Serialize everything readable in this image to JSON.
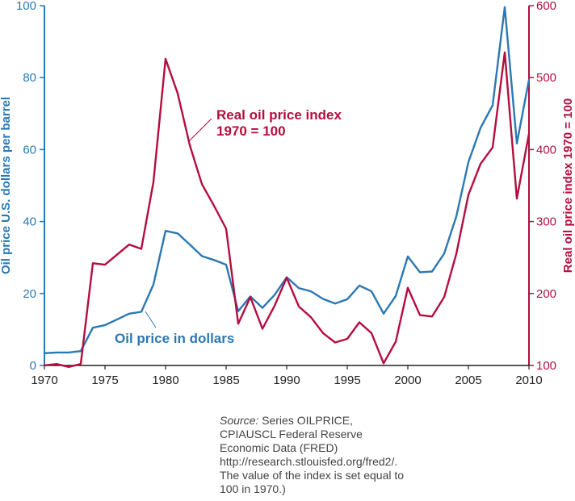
{
  "chart_data": {
    "type": "line",
    "x": [
      1970,
      1971,
      1972,
      1973,
      1974,
      1975,
      1976,
      1977,
      1978,
      1979,
      1980,
      1981,
      1982,
      1983,
      1984,
      1985,
      1986,
      1987,
      1988,
      1989,
      1990,
      1991,
      1992,
      1993,
      1994,
      1995,
      1996,
      1997,
      1998,
      1999,
      2000,
      2001,
      2002,
      2003,
      2004,
      2005,
      2006,
      2007,
      2008,
      2009,
      2010
    ],
    "series": [
      {
        "name": "Oil price in dollars",
        "axis": "left",
        "color": "#2b78b4",
        "values": [
          3.4,
          3.6,
          3.6,
          4.0,
          10.5,
          11.2,
          12.8,
          14.4,
          14.9,
          22.5,
          37.4,
          36.7,
          33.6,
          30.4,
          29.3,
          28.0,
          15.1,
          19.2,
          16.0,
          19.6,
          24.5,
          21.5,
          20.6,
          18.5,
          17.2,
          18.4,
          22.2,
          20.6,
          14.4,
          19.3,
          30.3,
          25.9,
          26.1,
          31.1,
          41.4,
          56.5,
          66.0,
          72.3,
          99.6,
          61.7,
          79.4
        ]
      },
      {
        "name": "Real oil price index 1970 = 100",
        "axis": "right",
        "color": "#b50d3e",
        "values": [
          100,
          102,
          98,
          102,
          242,
          240,
          254,
          268,
          262,
          355,
          526,
          478,
          406,
          352,
          322,
          290,
          158,
          195,
          151,
          183,
          222,
          182,
          167,
          145,
          132,
          137,
          160,
          145,
          103,
          133,
          208,
          170,
          168,
          195,
          255,
          337,
          380,
          403,
          535,
          332,
          422
        ]
      }
    ],
    "x_ticks": [
      "1970",
      "1975",
      "1980",
      "1985",
      "1990",
      "1995",
      "2000",
      "2005",
      "2010"
    ],
    "y_left_ticks": [
      "0",
      "20",
      "40",
      "60",
      "80",
      "100"
    ],
    "y_right_ticks": [
      "100",
      "200",
      "300",
      "400",
      "500",
      "600"
    ],
    "xlim": [
      1970,
      2010
    ],
    "ylim_left": [
      0,
      100
    ],
    "ylim_right": [
      100,
      600
    ],
    "ylabel_left": "Oil price U.S. dollars per barrel",
    "ylabel_right": "Real oil price index 1970 = 100",
    "annotations": {
      "real_line1": "Real oil price index",
      "real_line2": "1970 = 100",
      "nominal": "Oil price in dollars"
    },
    "grid": false
  },
  "source": {
    "label": "Source:",
    "text": " Series OILPRICE, CPIAUSCL Federal Reserve Economic Data (FRED) http://research.stlouisfed.org/fred2/. The value of the index is set equal to 100 in 1970.)"
  }
}
